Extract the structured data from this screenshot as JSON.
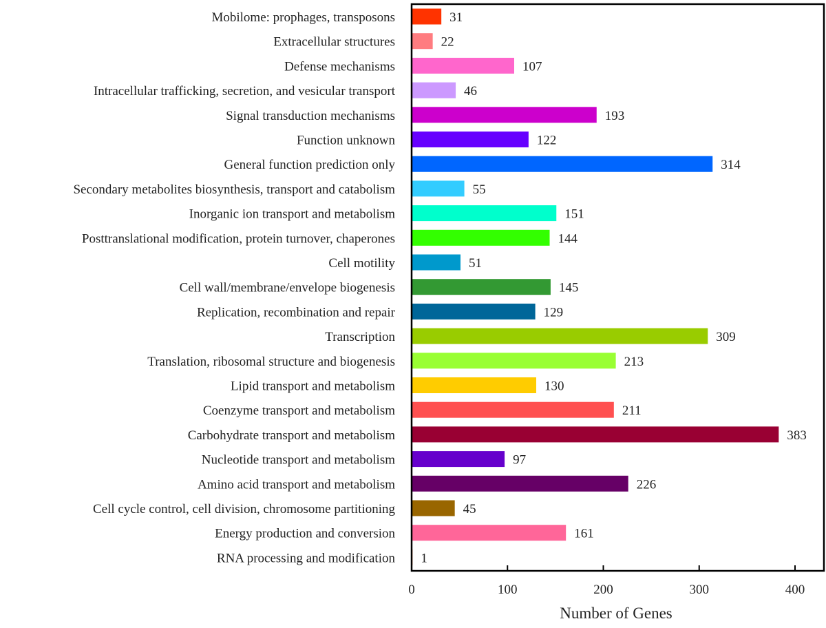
{
  "chart_data": {
    "type": "bar",
    "orientation": "horizontal",
    "title": "",
    "xlabel": "Number of Genes",
    "ylabel": "",
    "xlim": [
      0,
      430
    ],
    "xticks": [
      0,
      100,
      200,
      300,
      400
    ],
    "grid": false,
    "legend": "none",
    "categories": [
      "Mobilome: prophages, transposons",
      "Extracellular structures",
      "Defense mechanisms",
      "Intracellular trafficking, secretion, and vesicular transport",
      "Signal transduction mechanisms",
      "Function unknown",
      "General function prediction only",
      "Secondary metabolites biosynthesis, transport and catabolism",
      "Inorganic ion transport and metabolism",
      "Posttranslational modification, protein turnover, chaperones",
      "Cell motility",
      "Cell wall/membrane/envelope biogenesis",
      "Replication, recombination and repair",
      "Transcription",
      "Translation, ribosomal structure and biogenesis",
      "Lipid transport and metabolism",
      "Coenzyme transport and metabolism",
      "Carbohydrate transport and metabolism",
      "Nucleotide transport and metabolism",
      "Amino acid transport and metabolism",
      "Cell cycle control, cell division, chromosome partitioning",
      "Energy production and conversion",
      "RNA processing and modification"
    ],
    "values": [
      31,
      22,
      107,
      46,
      193,
      122,
      314,
      55,
      151,
      144,
      51,
      145,
      129,
      309,
      213,
      130,
      211,
      383,
      97,
      226,
      45,
      161,
      1
    ],
    "colors": [
      "#FF3300",
      "#FF7C80",
      "#FF66CC",
      "#CC99FF",
      "#CC00CC",
      "#6600FF",
      "#0066FF",
      "#33CCFF",
      "#00FFCC",
      "#33FF00",
      "#0099CC",
      "#339933",
      "#006699",
      "#99CC00",
      "#99FF33",
      "#FFCC00",
      "#FF5050",
      "#990033",
      "#6600CC",
      "#660066",
      "#996600",
      "#FF6699",
      "#FF9966"
    ],
    "data_labels": true
  }
}
